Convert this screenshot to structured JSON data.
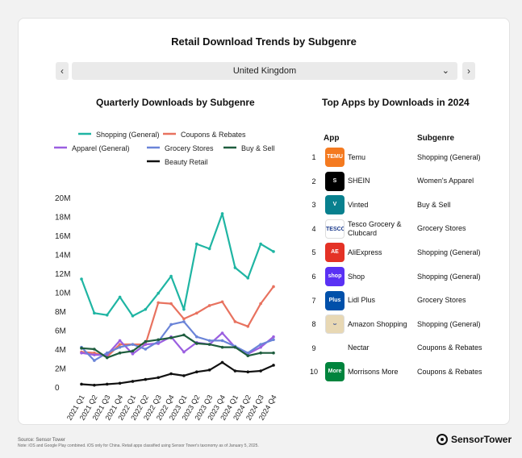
{
  "title": "Retail Download Trends by Subgenre",
  "country_selector": {
    "prev": "‹",
    "next": "›",
    "value": "United Kingdom",
    "caret": "⌄"
  },
  "left_title": "Quarterly Downloads by Subgenre",
  "right_title": "Top Apps by Downloads in 2024",
  "chart_data": {
    "type": "line",
    "title": "Quarterly Downloads by Subgenre",
    "categories": [
      "2021 Q1",
      "2021 Q2",
      "2021 Q3",
      "2021 Q4",
      "2022 Q1",
      "2022 Q2",
      "2022 Q3",
      "2022 Q4",
      "2023 Q1",
      "2023 Q2",
      "2023 Q3",
      "2023 Q4",
      "2024 Q1",
      "2024 Q2",
      "2024 Q3",
      "2024 Q4"
    ],
    "yticks": [
      0,
      2,
      4,
      6,
      8,
      10,
      12,
      14,
      16,
      18,
      20
    ],
    "ytick_labels": [
      "0",
      "2M",
      "4M",
      "6M",
      "8M",
      "10M",
      "12M",
      "14M",
      "16M",
      "18M",
      "20M"
    ],
    "ylim": [
      0,
      20
    ],
    "unit": "M",
    "legend_position": "top",
    "series": [
      {
        "name": "Shopping (General)",
        "color": "#1fb5a3",
        "values": [
          11.4,
          7.8,
          7.6,
          9.5,
          7.5,
          8.2,
          9.9,
          11.7,
          8.2,
          15.1,
          14.6,
          18.3,
          12.6,
          11.5,
          15.1,
          14.3
        ]
      },
      {
        "name": "Coupons & Rebates",
        "color": "#e8725f",
        "values": [
          3.7,
          3.6,
          3.2,
          4.5,
          4.5,
          4.5,
          8.9,
          8.8,
          7.2,
          7.8,
          8.6,
          9.0,
          6.9,
          6.4,
          8.8,
          10.6
        ]
      },
      {
        "name": "Apparel (General)",
        "color": "#9b5fe0",
        "values": [
          3.6,
          3.4,
          3.4,
          4.9,
          3.5,
          4.5,
          4.6,
          5.3,
          3.7,
          4.7,
          4.5,
          5.7,
          4.2,
          3.5,
          4.2,
          5.3
        ]
      },
      {
        "name": "Grocery Stores",
        "color": "#6a84d8",
        "values": [
          4.2,
          2.8,
          3.6,
          4.2,
          4.5,
          4.0,
          4.8,
          6.6,
          6.9,
          5.3,
          4.9,
          4.9,
          4.3,
          3.6,
          4.5,
          5.0
        ]
      },
      {
        "name": "Buy & Sell",
        "color": "#1e5d3e",
        "values": [
          4.1,
          4.0,
          3.1,
          3.6,
          3.8,
          4.8,
          5.0,
          5.2,
          5.5,
          4.6,
          4.5,
          4.2,
          4.2,
          3.3,
          3.6,
          3.6
        ]
      },
      {
        "name": "Beauty Retail",
        "color": "#111111",
        "values": [
          0.3,
          0.2,
          0.3,
          0.4,
          0.6,
          0.8,
          1.0,
          1.4,
          1.2,
          1.6,
          1.8,
          2.6,
          1.7,
          1.6,
          1.7,
          2.3
        ]
      }
    ]
  },
  "table": {
    "col_app": "App",
    "col_subgenre": "Subgenre",
    "rows": [
      {
        "rank": "1",
        "app": "Temu",
        "subgenre": "Shopping (General)",
        "icon": "temu-icon",
        "icon_text": "TEMU",
        "color": "#f47a20"
      },
      {
        "rank": "2",
        "app": "SHEIN",
        "subgenre": "Women's Apparel",
        "icon": "shein-icon",
        "icon_text": "S",
        "color": "#000000"
      },
      {
        "rank": "3",
        "app": "Vinted",
        "subgenre": "Buy & Sell",
        "icon": "vinted-icon",
        "icon_text": "V",
        "color": "#08808e"
      },
      {
        "rank": "4",
        "app": "Tesco Grocery & Clubcard",
        "subgenre": "Grocery Stores",
        "icon": "tesco-icon",
        "icon_text": "TESCO",
        "color": "#ffffff"
      },
      {
        "rank": "5",
        "app": "AliExpress",
        "subgenre": "Shopping (General)",
        "icon": "aliexpress-icon",
        "icon_text": "AE",
        "color": "#e43226"
      },
      {
        "rank": "6",
        "app": "Shop",
        "subgenre": "Shopping (General)",
        "icon": "shop-icon",
        "icon_text": "shop",
        "color": "#5a31f4"
      },
      {
        "rank": "7",
        "app": "Lidl Plus",
        "subgenre": "Grocery Stores",
        "icon": "lidl-icon",
        "icon_text": "Plus",
        "color": "#0050aa"
      },
      {
        "rank": "8",
        "app": "Amazon Shopping",
        "subgenre": "Shopping (General)",
        "icon": "amazon-icon",
        "icon_text": "⌣",
        "color": "#e8d8b4"
      },
      {
        "rank": "9",
        "app": "Nectar",
        "subgenre": "Coupons & Rebates",
        "icon": "nectar-icon",
        "icon_text": "",
        "color": "#ffffff"
      },
      {
        "rank": "10",
        "app": "Morrisons More",
        "subgenre": "Coupons & Rebates",
        "icon": "morrisons-icon",
        "icon_text": "More Card",
        "color": "#00843d"
      }
    ]
  },
  "footer": {
    "source": "Source: Sensor Tower",
    "note": "Note: iOS and Google Play combined. iOS only for China. Retail apps classified using Sensor Tower's taxonomy as of January 5, 2025."
  },
  "brand": "SensorTower"
}
